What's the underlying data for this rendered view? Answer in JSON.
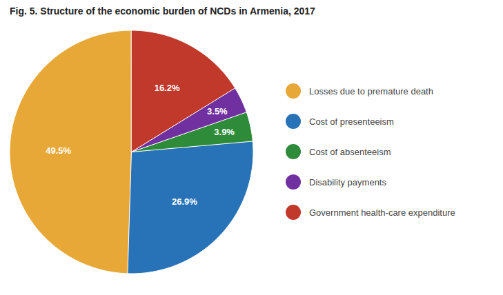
{
  "chart_data": {
    "type": "pie",
    "title": "Fig. 5. Structure of the economic burden of NCDs in Armenia, 2017",
    "categories": [
      "Losses due to premature death",
      "Cost of presenteeism",
      "Cost of absenteeism",
      "Disability payments",
      "Government health-care expenditure"
    ],
    "values": [
      49.5,
      26.9,
      3.9,
      3.5,
      16.2
    ],
    "value_labels": [
      "49.5%",
      "26.9%",
      "3.9%",
      "3.5%",
      "16.2%"
    ],
    "colors": [
      "#E8A838",
      "#2872B8",
      "#2E8B3A",
      "#7030A0",
      "#C0392B"
    ],
    "data_labels": true,
    "legend": "right"
  }
}
